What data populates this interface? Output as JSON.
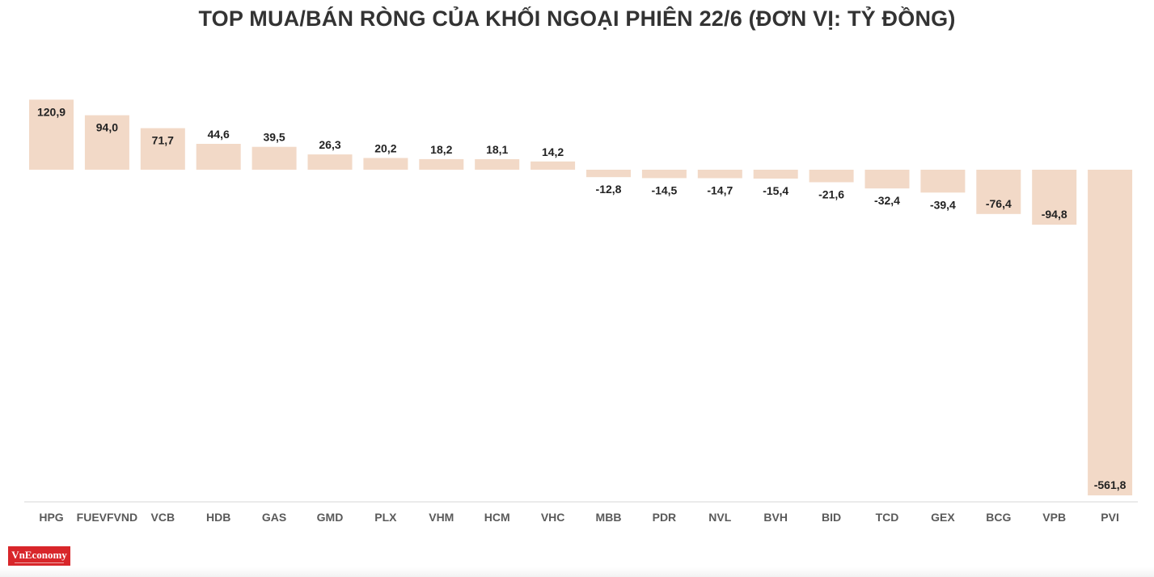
{
  "logo": "VnEconomy",
  "chart_data": {
    "type": "bar",
    "title": "TOP MUA/BÁN RÒNG CỦA KHỐI NGOẠI PHIÊN 22/6 (ĐƠN VỊ: TỶ ĐỒNG)",
    "categories": [
      "HPG",
      "FUEVFVND",
      "VCB",
      "HDB",
      "GAS",
      "GMD",
      "PLX",
      "VHM",
      "HCM",
      "VHC",
      "MBB",
      "PDR",
      "NVL",
      "BVH",
      "BID",
      "TCD",
      "GEX",
      "BCG",
      "VPB",
      "PVI"
    ],
    "values": [
      120.9,
      94.0,
      71.7,
      44.6,
      39.5,
      26.3,
      20.2,
      18.2,
      18.1,
      14.2,
      -12.8,
      -14.5,
      -14.7,
      -15.4,
      -21.6,
      -32.4,
      -39.4,
      -76.4,
      -94.8,
      -561.8
    ],
    "labels": [
      "120,9",
      "94,0",
      "71,7",
      "44,6",
      "39,5",
      "26,3",
      "20,2",
      "18,2",
      "18,1",
      "14,2",
      "-12,8",
      "-14,5",
      "-14,7",
      "-15,4",
      "-21,6",
      "-32,4",
      "-39,4",
      "-76,4",
      "-94,8",
      "-561,8"
    ],
    "ylim": [
      -561.8,
      120.9
    ],
    "grid": false,
    "bar_color": "#f2d9c7"
  }
}
